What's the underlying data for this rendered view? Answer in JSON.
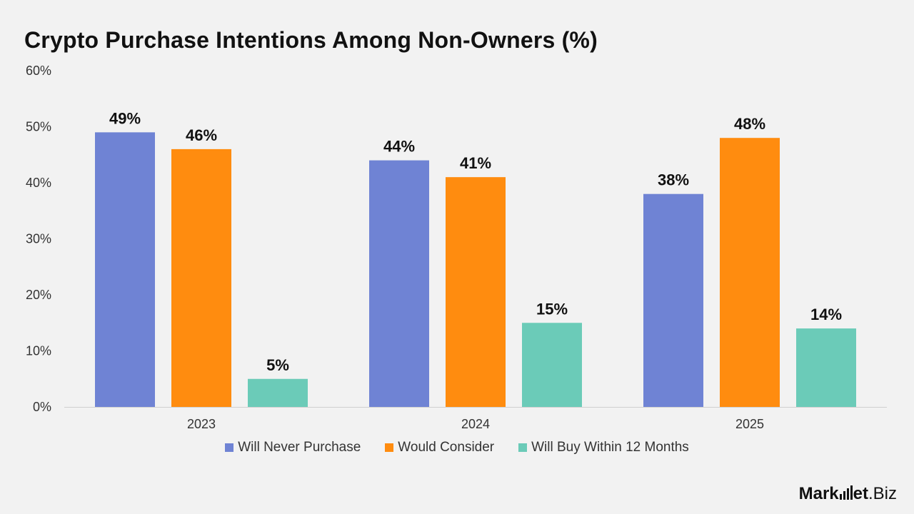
{
  "colors": {
    "background": "#f2f2f2",
    "series": [
      "#6f83d4",
      "#ff8c0f",
      "#6bcbb8"
    ]
  },
  "brand": {
    "name_prefix": "Mark",
    "name_mid": "et",
    "name_suffix": ".Biz"
  },
  "chart_data": {
    "type": "bar",
    "title": "Crypto Purchase Intentions Among Non-Owners (%)",
    "xlabel": "",
    "ylabel": "",
    "categories": [
      "2023",
      "2024",
      "2025"
    ],
    "series": [
      {
        "name": "Will Never Purchase",
        "values": [
          49,
          44,
          38
        ],
        "labels": [
          "49%",
          "44%",
          "38%"
        ]
      },
      {
        "name": "Would Consider",
        "values": [
          46,
          41,
          48
        ],
        "labels": [
          "46%",
          "41%",
          "48%"
        ]
      },
      {
        "name": "Will Buy Within 12 Months",
        "values": [
          5,
          15,
          14
        ],
        "labels": [
          "5%",
          "15%",
          "14%"
        ]
      }
    ],
    "ylim": [
      0,
      60
    ],
    "yticks": [
      "0%",
      "10%",
      "20%",
      "30%",
      "40%",
      "50%",
      "60%"
    ],
    "grid": false,
    "legend": "bottom-center"
  }
}
